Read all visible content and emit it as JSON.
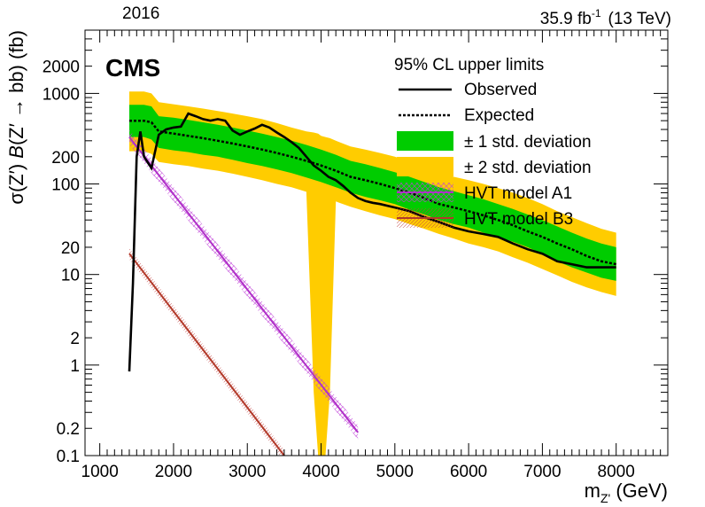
{
  "header": {
    "year": "2016",
    "lumi_value": "35.9 fb",
    "lumi_exp": "-1",
    "energy": "(13 TeV)",
    "experiment": "CMS"
  },
  "colors": {
    "band_1sigma": "#00cc00",
    "band_2sigma": "#ffcc00",
    "hvt_a1": "#b030c8",
    "hvt_b3": "#b23a2a",
    "line": "#000000"
  },
  "chart_data": {
    "type": "line",
    "xlabel": "m_Z' (GeV)",
    "ylabel": "σ(Z') B(Z' → bb) (fb)",
    "xlim": [
      800,
      8700
    ],
    "ylim": [
      0.1,
      5000
    ],
    "y_scale": "log",
    "x_ticks": [
      1000,
      2000,
      3000,
      4000,
      5000,
      6000,
      7000,
      8000
    ],
    "x_tick_labels": [
      "1000",
      "2000",
      "3000",
      "4000",
      "5000",
      "6000",
      "7000",
      "8000"
    ],
    "y_tick_labels": [
      {
        "value": 0.1,
        "label": "0.1"
      },
      {
        "value": 0.2,
        "label": "0.2"
      },
      {
        "value": 1,
        "label": "1"
      },
      {
        "value": 2,
        "label": "2"
      },
      {
        "value": 10,
        "label": "10"
      },
      {
        "value": 20,
        "label": "20"
      },
      {
        "value": 100,
        "label": "100"
      },
      {
        "value": 200,
        "label": "200"
      },
      {
        "value": 1000,
        "label": "1000"
      },
      {
        "value": 2000,
        "label": "2000"
      }
    ],
    "legend": {
      "title": "95% CL upper limits",
      "position": "top-right",
      "entries": [
        "Observed",
        "Expected",
        "± 1 std. deviation",
        "± 2 std. deviation",
        "HVT model A1",
        "HVT model B3"
      ]
    },
    "series": [
      {
        "name": "Observed",
        "x": [
          1400,
          1450,
          1500,
          1550,
          1600,
          1700,
          1800,
          1900,
          2000,
          2100,
          2200,
          2300,
          2400,
          2500,
          2600,
          2700,
          2800,
          2900,
          3000,
          3100,
          3200,
          3300,
          3400,
          3500,
          3600,
          3700,
          3800,
          3900,
          4000,
          4100,
          4200,
          4300,
          4400,
          4500,
          4600,
          4700,
          4800,
          5000,
          5200,
          5400,
          5600,
          5800,
          6000,
          6200,
          6400,
          6600,
          6800,
          7000,
          7200,
          7400,
          7600,
          7800,
          8000
        ],
        "y": [
          0.85,
          8,
          200,
          380,
          200,
          150,
          350,
          400,
          420,
          430,
          600,
          560,
          520,
          500,
          520,
          500,
          390,
          350,
          380,
          410,
          450,
          420,
          370,
          330,
          290,
          250,
          200,
          160,
          140,
          120,
          110,
          95,
          80,
          70,
          65,
          62,
          60,
          55,
          50,
          43,
          38,
          33,
          30,
          28,
          26,
          22,
          19,
          17,
          14,
          13,
          12,
          12,
          12
        ]
      },
      {
        "name": "Expected",
        "x": [
          1400,
          1600,
          1700,
          1800,
          2000,
          2200,
          2400,
          2600,
          2800,
          3000,
          3200,
          3400,
          3600,
          3800,
          4000,
          4200,
          4400,
          4600,
          4800,
          5000,
          5200,
          5400,
          5600,
          5800,
          6000,
          6200,
          6400,
          6600,
          6800,
          7000,
          7200,
          7400,
          7600,
          7800,
          8000
        ],
        "y": [
          500,
          500,
          480,
          380,
          360,
          340,
          320,
          300,
          280,
          260,
          240,
          220,
          200,
          180,
          160,
          140,
          120,
          110,
          100,
          90,
          80,
          70,
          60,
          55,
          50,
          45,
          40,
          35,
          30,
          26,
          22,
          19,
          16,
          14,
          13
        ]
      },
      {
        "name": "± 1 std. deviation",
        "x": [
          1400,
          1600,
          1700,
          1800,
          2000,
          2200,
          2400,
          2600,
          2800,
          3000,
          3200,
          3400,
          3600,
          3800,
          4000,
          4200,
          4400,
          4600,
          4800,
          5000,
          5200,
          5400,
          5600,
          5800,
          6000,
          6200,
          6400,
          6600,
          6800,
          7000,
          7200,
          7400,
          7600,
          7800,
          8000
        ],
        "low": [
          330,
          330,
          310,
          250,
          235,
          225,
          210,
          200,
          185,
          170,
          158,
          145,
          132,
          118,
          105,
          92,
          80,
          72,
          66,
          60,
          52,
          46,
          40,
          36,
          33,
          29,
          26,
          23,
          20,
          17,
          14,
          12,
          10.5,
          9.2,
          8.5
        ],
        "high": [
          750,
          750,
          720,
          560,
          540,
          510,
          480,
          450,
          420,
          390,
          360,
          330,
          300,
          270,
          240,
          210,
          180,
          165,
          150,
          135,
          120,
          105,
          92,
          83,
          75,
          68,
          60,
          53,
          46,
          40,
          34,
          29,
          25,
          22,
          20
        ]
      },
      {
        "name": "± 2 std. deviation",
        "x": [
          1400,
          1600,
          1700,
          1800,
          2000,
          2200,
          2400,
          2600,
          2800,
          3000,
          3200,
          3400,
          3600,
          3800,
          3900,
          3960,
          4000,
          4060,
          4120,
          4200,
          4400,
          4600,
          4800,
          5000,
          5200,
          5400,
          5600,
          5800,
          6000,
          6200,
          6400,
          6600,
          6800,
          7000,
          7200,
          7400,
          7600,
          7800,
          8000
        ],
        "low": [
          230,
          230,
          215,
          175,
          165,
          158,
          148,
          140,
          130,
          120,
          110,
          100,
          92,
          82,
          0.5,
          0.1,
          0.1,
          0.1,
          0.5,
          64,
          56,
          50,
          45,
          41,
          36,
          32,
          28,
          25,
          22,
          20,
          18,
          15.5,
          13.5,
          11.5,
          9.8,
          8.3,
          7.2,
          6.4,
          5.8
        ],
        "high": [
          1050,
          1050,
          1000,
          800,
          760,
          720,
          680,
          640,
          600,
          560,
          520,
          470,
          420,
          380,
          370,
          360,
          340,
          330,
          320,
          300,
          260,
          240,
          220,
          200,
          175,
          155,
          135,
          120,
          110,
          100,
          90,
          80,
          70,
          60,
          50,
          43,
          37,
          32,
          29
        ]
      },
      {
        "name": "HVT model A1",
        "x": [
          1400,
          4500
        ],
        "y": [
          330,
          0.18
        ]
      },
      {
        "name": "HVT model B3",
        "x": [
          1400,
          3500
        ],
        "y": [
          17,
          0.1
        ]
      }
    ]
  }
}
